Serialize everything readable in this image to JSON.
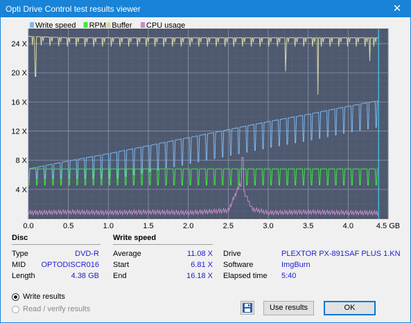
{
  "window": {
    "title": "Opti Drive Control test results viewer"
  },
  "legend": [
    {
      "label": "Write speed",
      "color": "#7fb7ee"
    },
    {
      "label": "RPM",
      "color": "#3bec3b"
    },
    {
      "label": "Buffer",
      "color": "#d9d9a8"
    },
    {
      "label": "CPU usage",
      "color": "#c98ac9"
    }
  ],
  "chart_data": {
    "type": "line",
    "x_unit": "GB",
    "y_unit": "X",
    "xlim": [
      0,
      4.5
    ],
    "ylim": [
      0,
      26
    ],
    "x_ticks": [
      "0.0",
      "0.5",
      "1.0",
      "1.5",
      "2.0",
      "2.5",
      "3.0",
      "3.5",
      "4.0",
      "4.5 GB"
    ],
    "y_ticks": [
      "4 X",
      "8 X",
      "12 X",
      "16 X",
      "20 X",
      "24 X"
    ],
    "end_marker_x": 4.38,
    "series": [
      {
        "name": "Write speed",
        "color": "#7fb7ee",
        "x": [
          0.0,
          0.5,
          1.0,
          1.5,
          2.0,
          2.5,
          3.0,
          3.5,
          4.0,
          4.38
        ],
        "values": [
          6.81,
          7.9,
          8.9,
          10.0,
          11.1,
          12.2,
          13.3,
          14.3,
          15.4,
          16.18
        ]
      },
      {
        "name": "RPM",
        "color": "#3bec3b",
        "x": [
          0.0,
          0.5,
          1.0,
          1.5,
          2.0,
          2.5,
          3.0,
          3.5,
          4.0,
          4.38
        ],
        "values": [
          6.8,
          6.8,
          6.8,
          6.8,
          6.8,
          6.8,
          6.8,
          6.8,
          6.8,
          6.8
        ]
      },
      {
        "name": "Buffer",
        "color": "#d9d9a8",
        "x": [
          0.0,
          0.5,
          1.0,
          1.5,
          2.0,
          2.5,
          3.0,
          3.5,
          4.0,
          4.38
        ],
        "values": [
          25.0,
          24.8,
          24.8,
          24.8,
          24.8,
          24.8,
          24.8,
          24.8,
          24.8,
          24.8
        ]
      },
      {
        "name": "CPU usage",
        "color": "#c98ac9",
        "x": [
          0.0,
          0.5,
          1.0,
          1.5,
          2.0,
          2.5,
          2.65,
          2.8,
          3.0,
          3.5,
          4.0,
          4.38
        ],
        "values": [
          0.5,
          0.6,
          0.5,
          0.6,
          0.5,
          0.8,
          4.5,
          1.0,
          0.5,
          0.6,
          0.5,
          0.5
        ]
      }
    ]
  },
  "disc": {
    "heading": "Disc",
    "type_label": "Type",
    "type_value": "DVD-R",
    "mid_label": "MID",
    "mid_value": "OPTODISCR016",
    "length_label": "Length",
    "length_value": "4.38 GB"
  },
  "write_speed": {
    "heading": "Write speed",
    "average_label": "Average",
    "average_value": "11.08 X",
    "start_label": "Start",
    "start_value": "6.81 X",
    "end_label": "End",
    "end_value": "16.18 X"
  },
  "drive_info": {
    "drive_label": "Drive",
    "drive_value": "PLEXTOR  PX-891SAF PLUS 1.KN",
    "software_label": "Software",
    "software_value": "ImgBurn",
    "elapsed_label": "Elapsed time",
    "elapsed_value": "5:40"
  },
  "options": {
    "write_results": "Write results",
    "read_verify_results": "Read / verify results"
  },
  "buttons": {
    "use_results": "Use results",
    "ok": "OK"
  }
}
